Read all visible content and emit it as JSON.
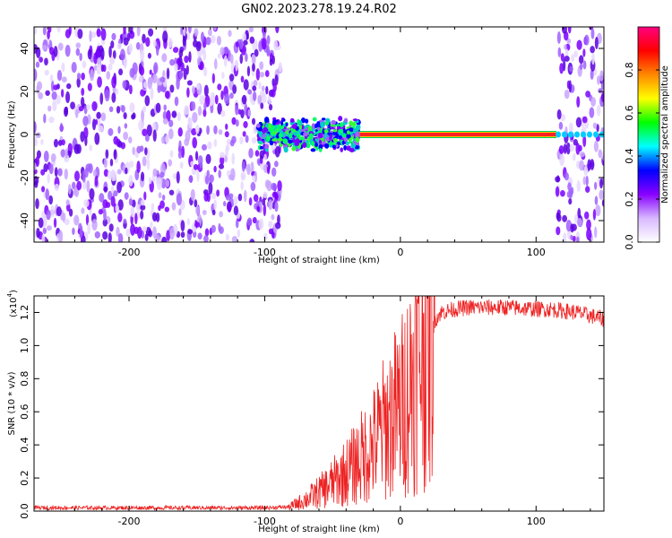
{
  "title": "GN02.2023.278.19.24.R02",
  "colors": {
    "snr_line": "#ee2222",
    "spectrogram_low": "#cc99ff",
    "spectrogram_mid": "#7a00ff",
    "carrier": "#ff2222"
  },
  "chart_data": [
    {
      "type": "heatmap",
      "xlabel": "Height of straight line (km)",
      "ylabel": "Frequency (Hz)",
      "xlim": [
        -270,
        150
      ],
      "ylim": [
        -50,
        50
      ],
      "xticks": [
        -200,
        -100,
        0,
        100
      ],
      "yticks": [
        -40,
        -20,
        0,
        20,
        40
      ],
      "colorbar": {
        "label": "Normalized spectral amplitude",
        "range": [
          0,
          1
        ],
        "ticks": [
          "0.0",
          "0.2",
          "0.4",
          "0.6",
          "0.8"
        ],
        "colormap": [
          "#ffffff",
          "#d8b8ff",
          "#8800ff",
          "#0000ff",
          "#00ffff",
          "#00ff00",
          "#ffff00",
          "#ff8800",
          "#ff0000",
          "#ff0080"
        ]
      },
      "regions": [
        {
          "kind": "noise",
          "x_start": -270,
          "x_end": -88,
          "level": 0.35
        },
        {
          "kind": "signal_noisy",
          "x_start": -105,
          "x_end": -30,
          "spread_hz": 8,
          "level": 0.6
        },
        {
          "kind": "carrier",
          "x_start": -30,
          "x_end": 115,
          "freq_hz": 0,
          "level": 0.9
        },
        {
          "kind": "noise",
          "x_start": 115,
          "x_end": 150,
          "level": 0.3
        }
      ]
    },
    {
      "type": "line",
      "xlabel": "Height of straight line (km)",
      "ylabel": "SNR (10 * v/v)",
      "yscale_label": "(x10",
      "yscale_exponent": "4",
      "xlim": [
        -270,
        150
      ],
      "ylim": [
        0,
        1.3
      ],
      "xticks": [
        -200,
        -100,
        0,
        100
      ],
      "yticks": [
        "0.0",
        "0.2",
        "0.4",
        "0.6",
        "0.8",
        "1.0",
        "1.2"
      ],
      "series": [
        {
          "x": [
            -270,
            -200,
            -150,
            -100,
            -82,
            -75,
            -65,
            -55,
            -45,
            -35,
            -28,
            -20,
            -12,
            -5,
            0,
            5,
            10,
            15,
            20,
            25,
            30,
            40,
            50,
            60,
            80,
            100,
            110,
            120,
            130,
            140,
            150
          ],
          "y": [
            0.02,
            0.02,
            0.02,
            0.02,
            0.025,
            0.05,
            0.09,
            0.14,
            0.2,
            0.27,
            0.33,
            0.4,
            0.5,
            0.58,
            0.62,
            0.72,
            0.85,
            0.98,
            1.08,
            1.15,
            1.2,
            1.22,
            1.23,
            1.23,
            1.23,
            1.22,
            1.22,
            1.21,
            1.2,
            1.18,
            1.16
          ]
        }
      ]
    }
  ]
}
